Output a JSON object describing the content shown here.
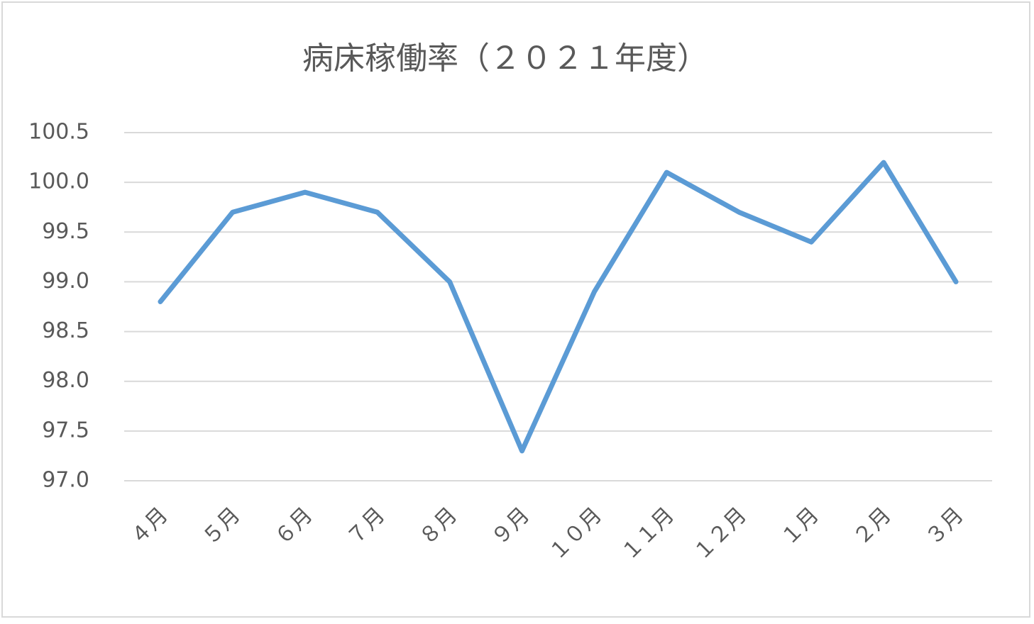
{
  "chart_data": {
    "type": "line",
    "title": "病床稼働率（２０２１年度）",
    "categories": [
      "４月",
      "５月",
      "６月",
      "７月",
      "８月",
      "９月",
      "１０月",
      "１１月",
      "１２月",
      "１月",
      "２月",
      "３月"
    ],
    "series": [
      {
        "color": "#5b9bd5",
        "values": [
          98.8,
          99.7,
          99.9,
          99.7,
          99.0,
          97.3,
          98.9,
          100.1,
          99.7,
          99.4,
          100.2,
          99.0
        ]
      }
    ],
    "ylim": [
      97.0,
      100.5
    ],
    "yticks": [
      {
        "value": 97.0,
        "label": "97.0"
      },
      97.5,
      {
        "value": 98.0,
        "label": "98.0"
      },
      98.5,
      {
        "value": 99.0,
        "label": "99.0"
      },
      99.5,
      {
        "value": 100.0,
        "label": "100.0"
      },
      100.5
    ],
    "grid": true
  }
}
